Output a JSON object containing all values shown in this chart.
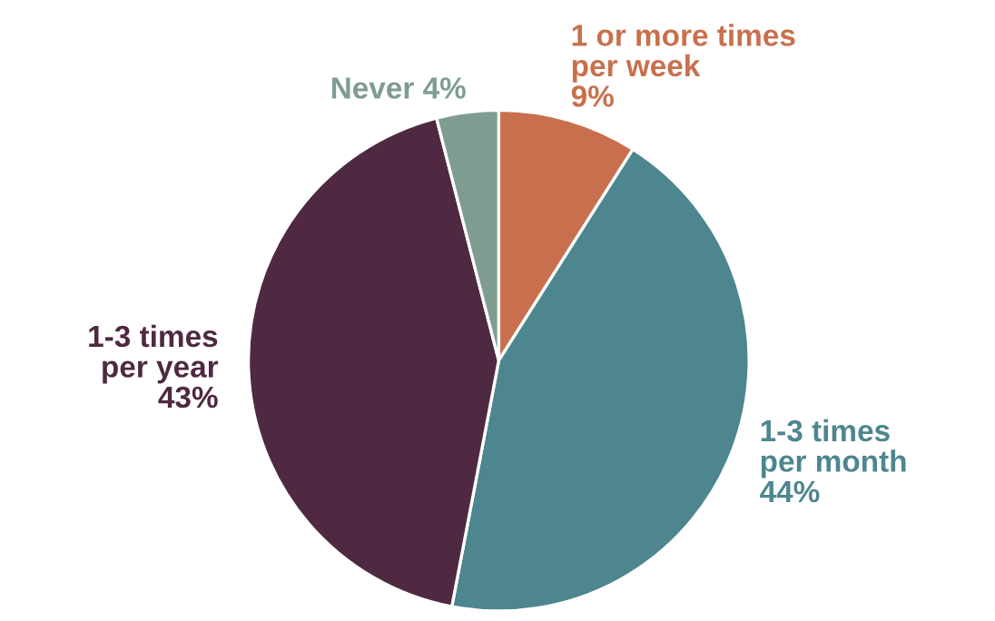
{
  "chart_data": {
    "type": "pie",
    "categories": [
      "1 or more times\nper week",
      "1-3 times\nper month",
      "1-3 times\nper year",
      "Never"
    ],
    "values": [
      9,
      44,
      43,
      4
    ],
    "value_labels": [
      "9%",
      "44%",
      "43%",
      "4%"
    ],
    "colors": [
      "#c8704d",
      "#4d868e",
      "#4e2941",
      "#7f9c90"
    ]
  }
}
